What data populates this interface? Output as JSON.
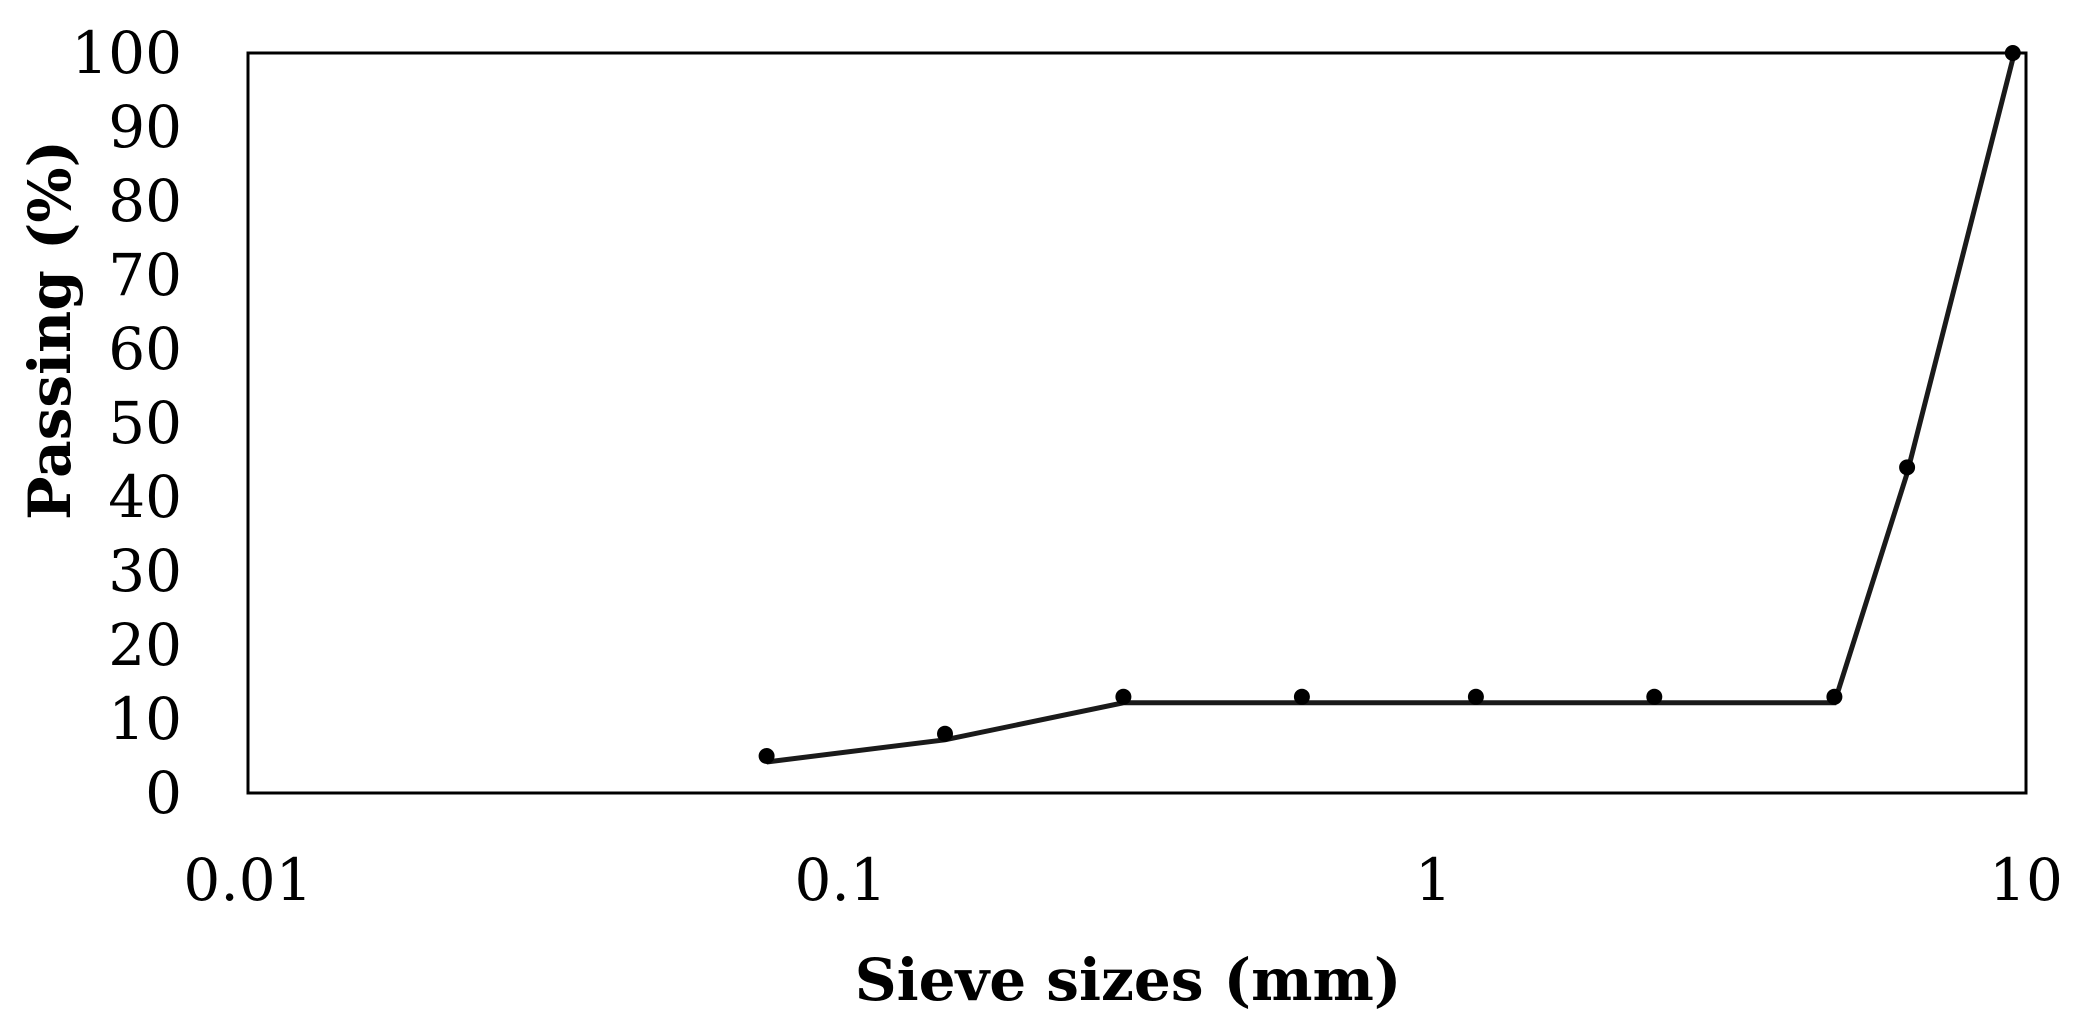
{
  "chart_data": {
    "type": "line",
    "title": "",
    "xlabel": "Sieve sizes (mm)",
    "ylabel": "Passing (%)",
    "x_scale": "log",
    "xlim": [
      0.01,
      10
    ],
    "ylim": [
      0,
      100
    ],
    "grid": false,
    "legend": "none",
    "x_ticks": [
      "0.01",
      "0.1",
      "1",
      "10"
    ],
    "y_ticks": [
      "0",
      "10",
      "20",
      "30",
      "40",
      "50",
      "60",
      "70",
      "80",
      "90",
      "100"
    ],
    "series": [
      {
        "points": [
          {
            "x": 0.075,
            "y": 5
          },
          {
            "x": 0.15,
            "y": 8
          },
          {
            "x": 0.3,
            "y": 13
          },
          {
            "x": 0.6,
            "y": 13
          },
          {
            "x": 1.18,
            "y": 13
          },
          {
            "x": 2.36,
            "y": 13
          },
          {
            "x": 4.75,
            "y": 13
          },
          {
            "x": 6.3,
            "y": 44
          },
          {
            "x": 9.5,
            "y": 100
          }
        ],
        "line_color": "#1a1a1a",
        "marker_color": "#000000"
      }
    ]
  }
}
